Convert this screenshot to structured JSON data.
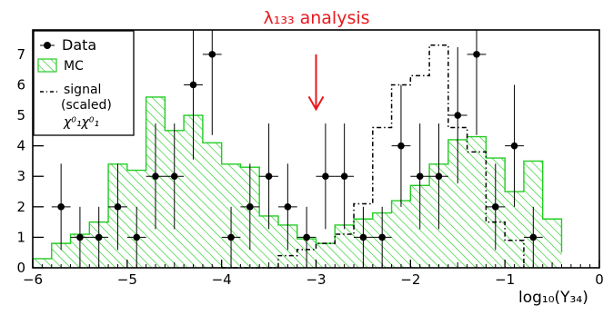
{
  "chart_data": {
    "type": "bar",
    "title": "λ₁₃₃ analysis",
    "title_color": "#e8191e",
    "xlabel": "log₁₀(Y₃₄)",
    "ylabel": "",
    "xlim": [
      -6,
      0
    ],
    "ylim": [
      0,
      7.8
    ],
    "x_ticks": [
      -6,
      -5,
      -4,
      -3,
      -2,
      -1,
      0
    ],
    "x_tick_labels": [
      "−6",
      "−5",
      "−4",
      "−3",
      "−2",
      "−1",
      "0"
    ],
    "y_ticks": [
      0,
      1,
      2,
      3,
      4,
      5,
      6,
      7
    ],
    "y_tick_labels": [
      "0",
      "1",
      "2",
      "3",
      "4",
      "5",
      "6",
      "7"
    ],
    "grid": false,
    "legend_position": "top-left",
    "legend": {
      "data": "Data",
      "mc": "MC",
      "signal_line1": "signal",
      "signal_line2": "(scaled)",
      "signal_line3": "χ⁰₁χ⁰₁"
    },
    "series": [
      {
        "name": "MC",
        "kind": "histogram",
        "color": "#22cc22",
        "bin_edges": [
          -6.0,
          -5.8,
          -5.6,
          -5.4,
          -5.2,
          -5.0,
          -4.8,
          -4.6,
          -4.4,
          -4.2,
          -4.0,
          -3.8,
          -3.6,
          -3.4,
          -3.2,
          -3.0,
          -2.8,
          -2.6,
          -2.4,
          -2.2,
          -2.0,
          -1.8,
          -1.6,
          -1.4,
          -1.2,
          -1.0,
          -0.8,
          -0.6,
          -0.4
        ],
        "values": [
          0.3,
          0.8,
          1.1,
          1.5,
          3.4,
          3.2,
          5.6,
          4.5,
          5.0,
          4.1,
          3.4,
          3.3,
          1.7,
          1.4,
          0.95,
          0.8,
          1.4,
          1.6,
          1.8,
          2.2,
          2.7,
          3.4,
          4.2,
          4.3,
          3.6,
          2.5,
          3.5,
          1.6,
          0.5
        ]
      },
      {
        "name": "signal (scaled) χ⁰₁χ⁰₁",
        "kind": "histogram",
        "line_style": "dash-dot",
        "bin_edges": [
          -4.0,
          -3.4,
          -3.2,
          -3.0,
          -2.8,
          -2.6,
          -2.4,
          -2.2,
          -2.0,
          -1.8,
          -1.6,
          -1.4,
          -1.2,
          -1.0,
          -0.8
        ],
        "values": [
          0.0,
          0.4,
          0.6,
          0.8,
          1.1,
          2.1,
          4.6,
          6.0,
          6.3,
          7.3,
          4.6,
          3.8,
          1.5,
          0.9,
          0.0
        ]
      },
      {
        "name": "Data",
        "kind": "points",
        "color": "#000000",
        "x": [
          -5.7,
          -5.5,
          -5.3,
          -5.1,
          -4.9,
          -4.7,
          -4.5,
          -4.3,
          -4.1,
          -3.9,
          -3.7,
          -3.5,
          -3.3,
          -3.1,
          -2.9,
          -2.7,
          -2.5,
          -2.3,
          -2.1,
          -1.9,
          -1.7,
          -1.5,
          -1.3,
          -1.1,
          -0.9,
          -0.7
        ],
        "y": [
          2,
          1,
          1,
          2,
          1,
          3,
          3,
          6,
          7,
          1,
          2,
          3,
          2,
          1,
          3,
          3,
          1,
          1,
          4,
          3,
          3,
          5,
          7,
          2,
          4,
          1
        ]
      }
    ],
    "annotation": {
      "type": "arrow",
      "x": -3.0,
      "y_from": 7.0,
      "y_to": 5.2,
      "color": "#e8191e"
    }
  }
}
